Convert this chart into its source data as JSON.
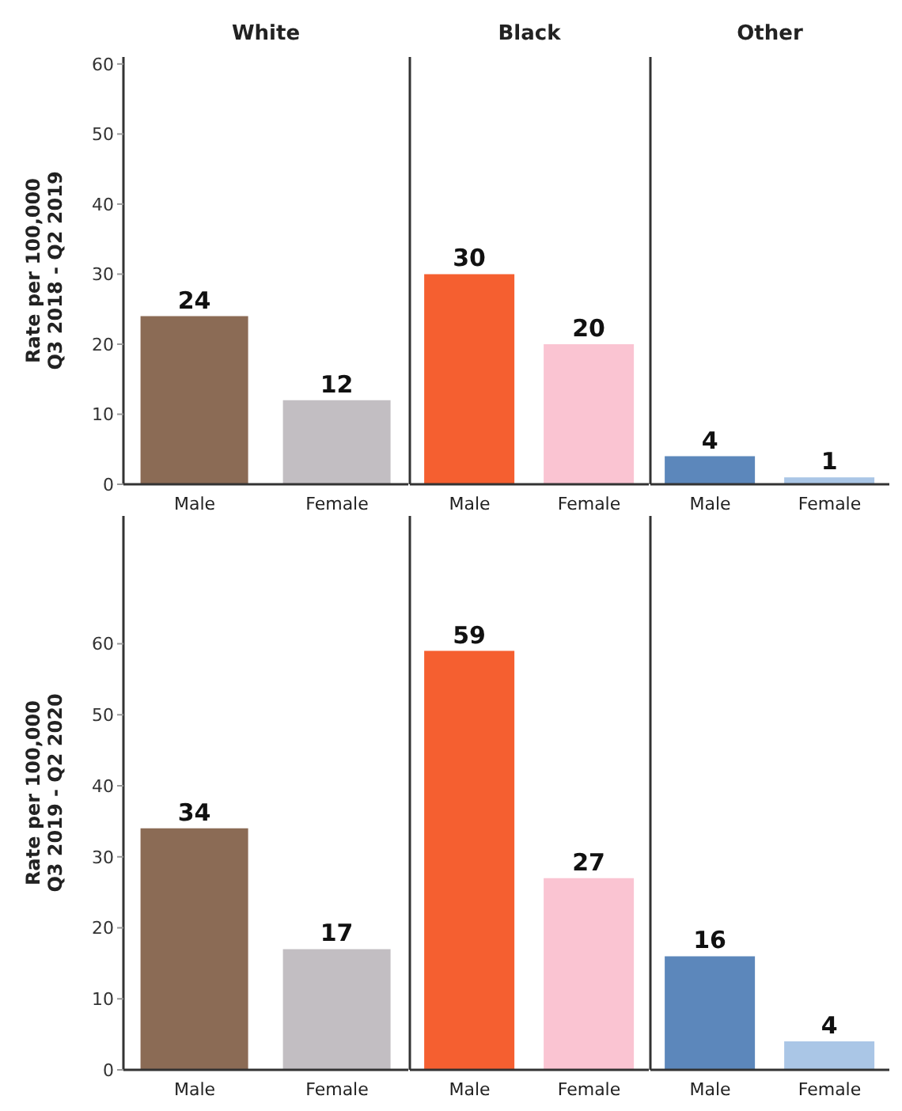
{
  "chart_data": [
    {
      "type": "bar",
      "title": "White",
      "ylabel": "Rate per 100,000\nQ3 2018 - Q2 2019",
      "categories": [
        "Male",
        "Female"
      ],
      "values": [
        24,
        12
      ],
      "colors": [
        "#8b6b55",
        "#c2bec2"
      ],
      "data_labels": true,
      "ylim": [
        0,
        61
      ],
      "yticks": [
        0,
        10,
        20,
        30,
        40,
        50,
        60
      ],
      "grid": false,
      "legend": false
    },
    {
      "type": "bar",
      "title": "Black",
      "categories": [
        "Male",
        "Female"
      ],
      "values": [
        30,
        20
      ],
      "colors": [
        "#f55f30",
        "#fac4d2"
      ],
      "data_labels": true,
      "ylim": [
        0,
        61
      ],
      "yticks": [
        0,
        10,
        20,
        30,
        40,
        50,
        60
      ],
      "grid": false,
      "legend": false,
      "tick_labels": "x"
    },
    {
      "type": "bar",
      "title": "Other",
      "categories": [
        "Male",
        "Female"
      ],
      "values": [
        4,
        1
      ],
      "colors": [
        "#5c87bb",
        "#aac6e6"
      ],
      "data_labels": true,
      "ylim": [
        0,
        61
      ],
      "yticks": [
        0,
        10,
        20,
        30,
        40,
        50,
        60
      ],
      "grid": false,
      "legend": false,
      "tick_labels": "x"
    },
    {
      "type": "bar",
      "ylabel": "Rate per 100,000\nQ3 2019 - Q2 2020",
      "categories": [
        "Male",
        "Female"
      ],
      "values": [
        34,
        17
      ],
      "colors": [
        "#8b6b55",
        "#c2bec2"
      ],
      "data_labels": true,
      "ylim": [
        0,
        78
      ],
      "yticks": [
        0,
        10,
        20,
        30,
        40,
        50,
        60
      ],
      "grid": false,
      "legend": false
    },
    {
      "type": "bar",
      "categories": [
        "Male",
        "Female"
      ],
      "values": [
        59,
        27
      ],
      "colors": [
        "#f55f30",
        "#fac4d2"
      ],
      "data_labels": true,
      "ylim": [
        0,
        78
      ],
      "yticks": [
        0,
        10,
        20,
        30,
        40,
        50,
        60
      ],
      "grid": false,
      "legend": false,
      "tick_labels": "x"
    },
    {
      "type": "bar",
      "categories": [
        "Male",
        "Female"
      ],
      "values": [
        16,
        4
      ],
      "colors": [
        "#5c87bb",
        "#aac6e6"
      ],
      "data_labels": true,
      "ylim": [
        0,
        78
      ],
      "yticks": [
        0,
        10,
        20,
        30,
        40,
        50,
        60
      ],
      "grid": false,
      "legend": false,
      "tick_labels": "x"
    }
  ]
}
